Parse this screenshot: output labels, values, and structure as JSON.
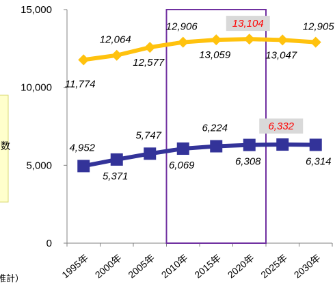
{
  "chart_data": {
    "type": "line",
    "categories": [
      "1995年",
      "2000年",
      "2005年",
      "2010年",
      "2015年",
      "2020年",
      "2025年",
      "2030年"
    ],
    "series": [
      {
        "values": [
          11774,
          12064,
          12577,
          12906,
          13059,
          13104,
          13047,
          12905
        ],
        "labels": [
          "11,774",
          "12,064",
          "12,577",
          "12,906",
          "13,059",
          "13,104",
          "13,047",
          "12,905"
        ],
        "color": "#FFC20E",
        "highlight_index": 5
      },
      {
        "values": [
          4952,
          5371,
          5747,
          6069,
          6224,
          6308,
          6332,
          6314
        ],
        "labels": [
          "4,952",
          "5,371",
          "5,747",
          "6,069",
          "6,224",
          "6,308",
          "6,332",
          "6,314"
        ],
        "color": "#333399",
        "highlight_index": 6
      }
    ],
    "ylim": [
      0,
      15000
    ],
    "yticks": [
      0,
      5000,
      10000,
      15000
    ],
    "ytick_labels": [
      "0",
      "5,000",
      "10,000",
      "15,000"
    ],
    "highlight_box_color": "#7030A0",
    "highlight_label_color": "#FF0000",
    "highlight_label_bg": "#D9D9D9",
    "left_box_fill": "#FFFFCC",
    "left_box_border": "#DADA70",
    "left_box_text": "数",
    "footnote": "推計）"
  }
}
